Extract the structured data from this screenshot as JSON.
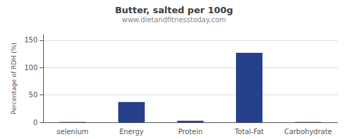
{
  "chart_data": {
    "type": "bar",
    "title": "Butter, salted per 100g",
    "subtitle": "www.dietandfitnesstoday.com",
    "categories": [
      "selenium",
      "Energy",
      "Protein",
      "Total-Fat",
      "Carbohydrate"
    ],
    "values": [
      0.5,
      37,
      3,
      127,
      0.5
    ],
    "color": "#27408B",
    "ylabel": "Percentage of RDH (%)",
    "ylim": [
      0,
      160
    ],
    "yticks": [
      0,
      50,
      100,
      150
    ],
    "grid": true
  }
}
